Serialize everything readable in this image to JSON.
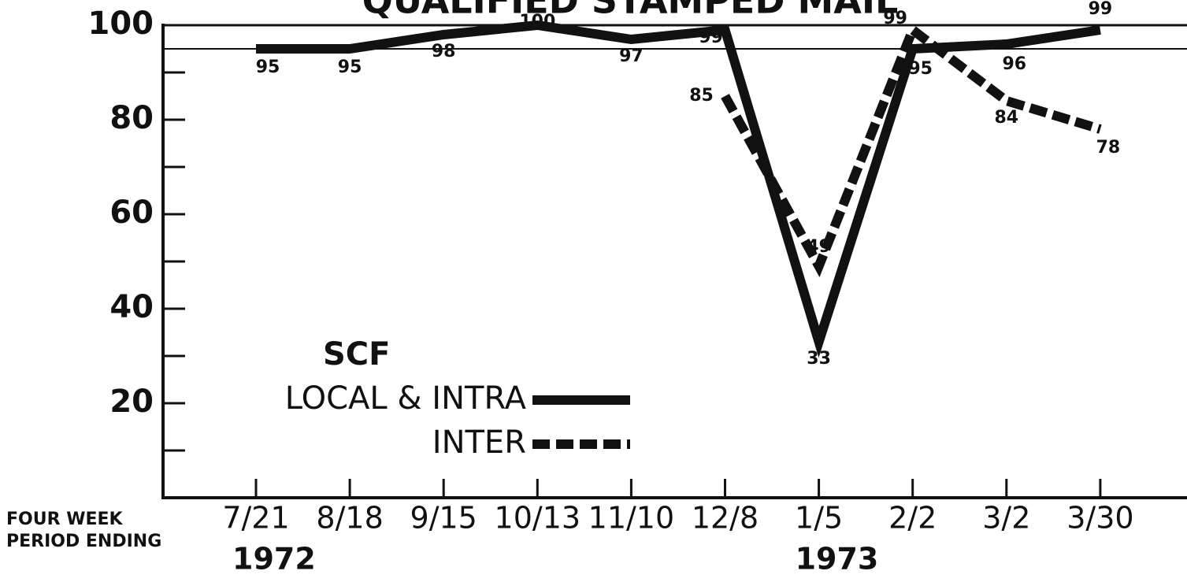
{
  "chart_data": {
    "type": "line",
    "title": "QUALIFIED STAMPED MAIL",
    "x_label": [
      "FOUR WEEK",
      "PERIOD ENDING"
    ],
    "categories": [
      "7/21",
      "8/18",
      "9/15",
      "10/13",
      "11/10",
      "12/8",
      "1/5",
      "2/2",
      "3/2",
      "3/30"
    ],
    "year_labels": [
      {
        "index": 0,
        "label": "1972"
      },
      {
        "index": 6,
        "label": "1973"
      }
    ],
    "ylim": [
      0,
      100
    ],
    "yticks": [
      20,
      40,
      60,
      80,
      100
    ],
    "yminor_ticks": [
      10,
      30,
      50,
      70,
      90
    ],
    "reference_line": 95,
    "legend_title": "SCF",
    "series": [
      {
        "name": "LOCAL & INTRA",
        "color": "#111111",
        "dash": false,
        "values": [
          95,
          95,
          98,
          100,
          97,
          99,
          33,
          95,
          96,
          99
        ]
      },
      {
        "name": "INTER",
        "color": "#111111",
        "dash": true,
        "values": [
          null,
          null,
          null,
          null,
          null,
          85,
          49,
          99,
          84,
          78
        ]
      }
    ]
  }
}
